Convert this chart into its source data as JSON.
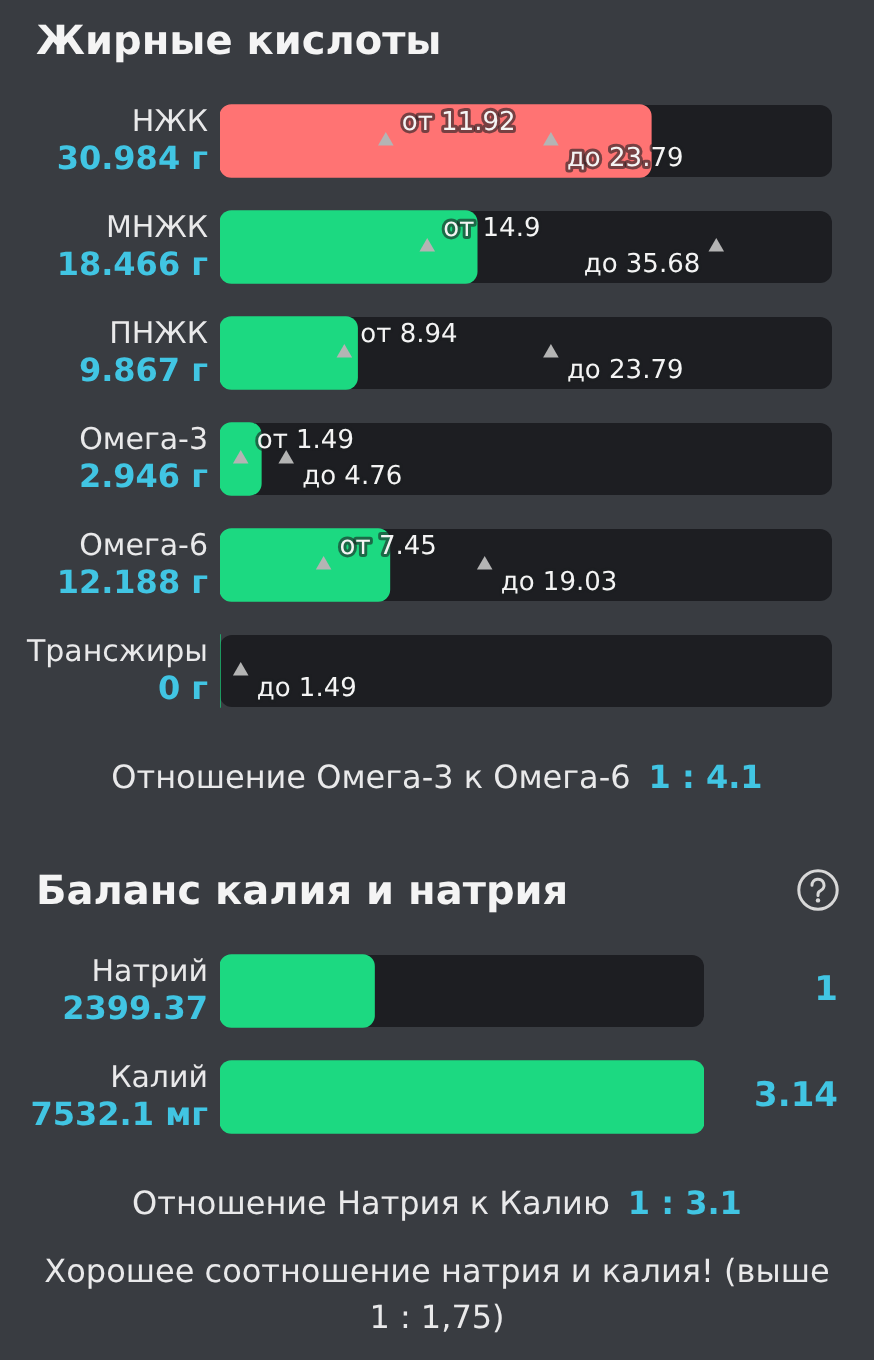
{
  "chart_data": [
    {
      "type": "bar",
      "orientation": "horizontal",
      "title": "Жирные кислоты",
      "categories": [
        "НЖК",
        "МНЖК",
        "ПНЖК",
        "Омега-3",
        "Омега-6",
        "Трансжиры"
      ],
      "xlim": [
        0,
        44
      ],
      "tick_labels": "y",
      "marker": "triangle",
      "series": [
        {
          "type": "bar",
          "values": [
            30.984,
            18.466,
            9.867,
            2.946,
            12.188,
            0
          ],
          "value_labels": [
            "30.984 г",
            "18.466 г",
            "9.867 г",
            "2.946 г",
            "12.188 г",
            "0 г"
          ],
          "colors": [
            "#ff7373",
            "#1cd981",
            "#1cd981",
            "#1cd981",
            "#1cd981",
            "#1cd981"
          ]
        },
        {
          "type": "scatter",
          "x": [
            "НЖК",
            "МНЖК",
            "ПНЖК",
            "Омега-3",
            "Омега-6",
            "Трансжиры"
          ],
          "values": [
            11.92,
            14.9,
            8.94,
            1.49,
            7.45,
            null
          ],
          "value_labels": [
            "от 11.92",
            "от 14.9",
            "от 8.94",
            "от 1.49",
            "от 7.45",
            null
          ],
          "color": "#b4b4b4"
        },
        {
          "type": "scatter",
          "x": [
            "НЖК",
            "МНЖК",
            "ПНЖК",
            "Омега-3",
            "Омега-6",
            "Трансжиры"
          ],
          "values": [
            23.79,
            35.68,
            23.79,
            4.76,
            19.03,
            1.49
          ],
          "value_labels": [
            "до 23.79",
            "до 35.68",
            "до 23.79",
            "до 4.76",
            "до 19.03",
            "до 1.49"
          ],
          "color": "#b4b4b4"
        }
      ],
      "annotations": [
        "Отношение Омега-3 к Омега-6",
        "1 : 4.1"
      ]
    },
    {
      "type": "bar",
      "orientation": "horizontal",
      "title": "Баланс калия и натрия",
      "categories": [
        "Натрий",
        "Калий"
      ],
      "values": [
        2399.37,
        7532.1
      ],
      "value_labels": [
        "2399.37",
        "7532.1 мг"
      ],
      "color": "#1cd981",
      "xlim": [
        0,
        7532.1
      ],
      "tick_labels": "y",
      "annotations": [
        "Отношение Натрия к Калию",
        "1 : 3.1",
        "Хорошее соотношение натрия и калия! (выше 1 : 1,75)",
        "1",
        "3.14"
      ]
    }
  ]
}
